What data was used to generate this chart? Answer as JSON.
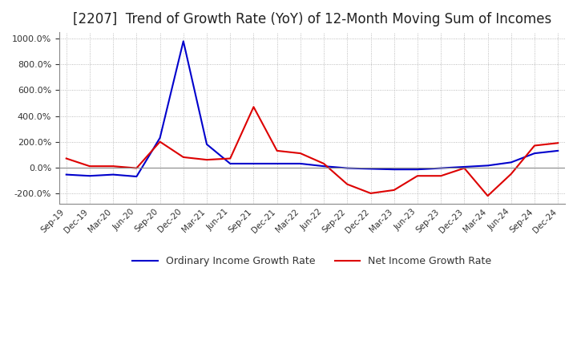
{
  "title": "[2207]  Trend of Growth Rate (YoY) of 12-Month Moving Sum of Incomes",
  "title_fontsize": 12,
  "background_color": "#ffffff",
  "grid_color": "#aaaaaa",
  "ordinary_color": "#0000cc",
  "net_color": "#dd0000",
  "ylim": [
    -280,
    1050
  ],
  "yticks": [
    -200,
    0,
    200,
    400,
    600,
    800,
    1000
  ],
  "legend_labels": [
    "Ordinary Income Growth Rate",
    "Net Income Growth Rate"
  ],
  "x_labels": [
    "Sep-19",
    "Dec-19",
    "Mar-20",
    "Jun-20",
    "Sep-20",
    "Dec-20",
    "Mar-21",
    "Jun-21",
    "Sep-21",
    "Dec-21",
    "Mar-22",
    "Jun-22",
    "Sep-22",
    "Dec-22",
    "Mar-23",
    "Jun-23",
    "Sep-23",
    "Dec-23",
    "Mar-24",
    "Jun-24",
    "Sep-24",
    "Dec-24"
  ],
  "ordinary_y": [
    -55,
    -65,
    -55,
    -70,
    230,
    980,
    180,
    30,
    30,
    30,
    30,
    10,
    -5,
    -10,
    -15,
    -15,
    -5,
    5,
    15,
    40,
    110,
    130
  ],
  "net_y": [
    70,
    10,
    10,
    -5,
    200,
    80,
    60,
    70,
    470,
    130,
    110,
    30,
    -130,
    -200,
    -175,
    -65,
    -65,
    -5,
    -220,
    -50,
    170,
    190
  ]
}
